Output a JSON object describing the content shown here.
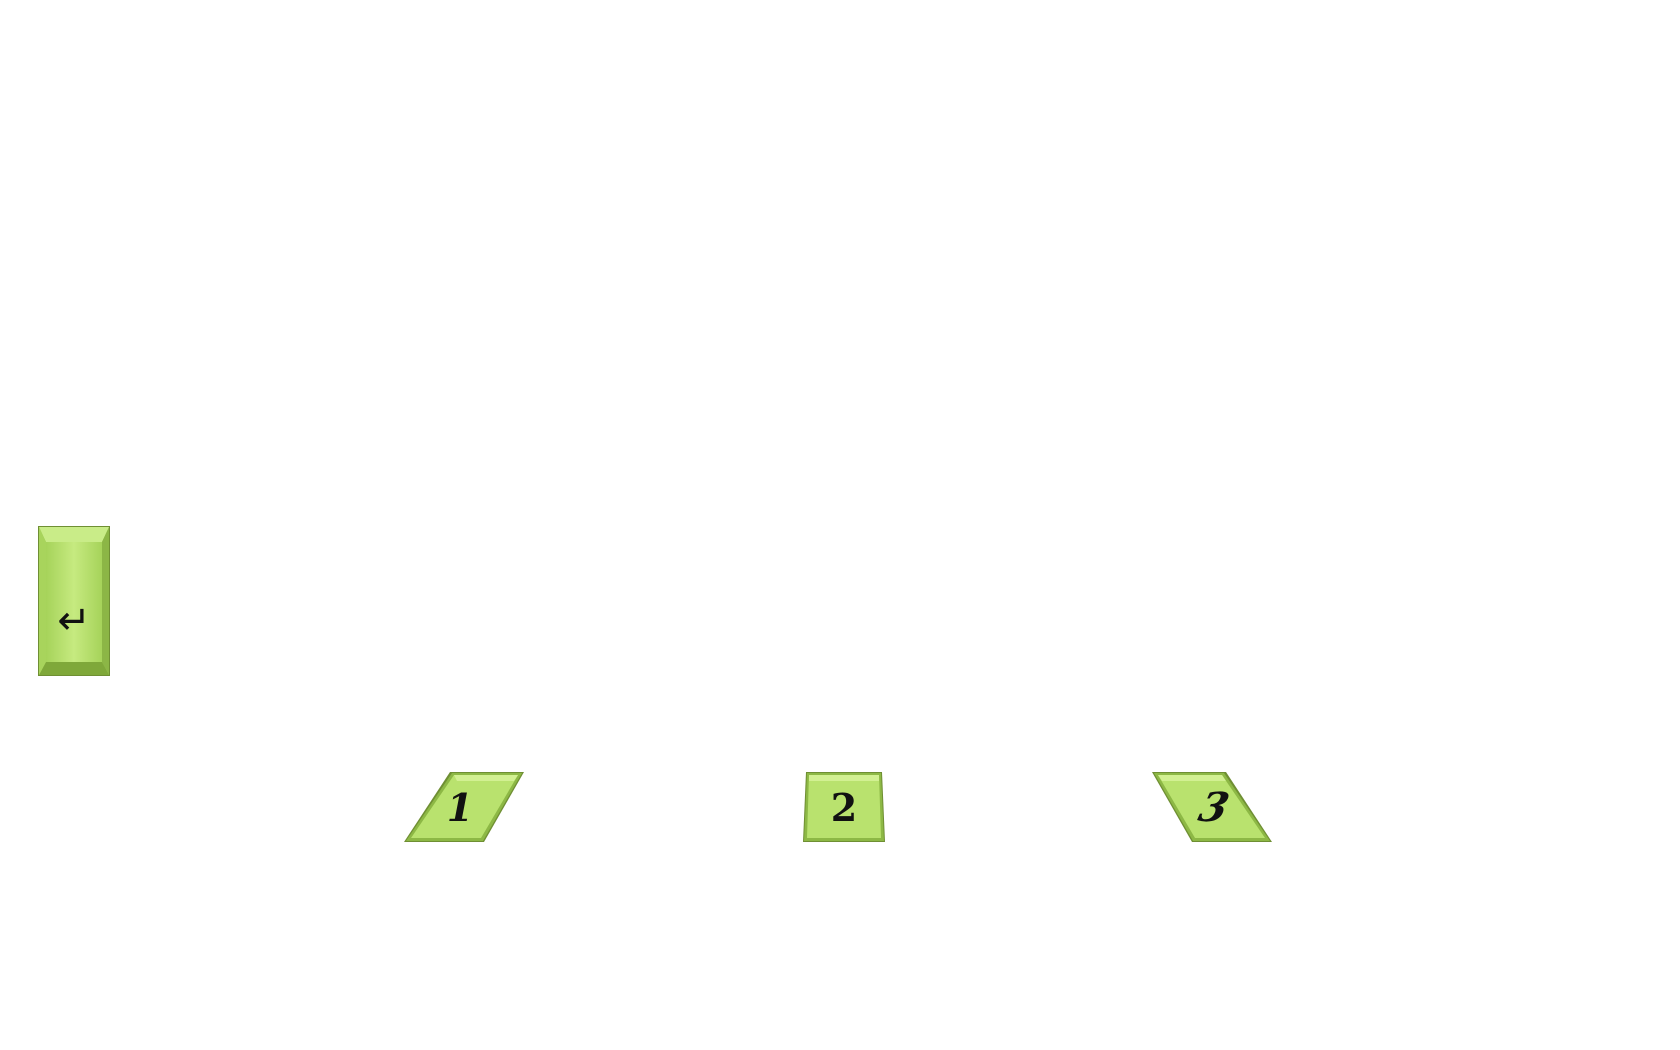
{
  "screen": {
    "background": "#ffffff"
  },
  "keys": {
    "enter": {
      "label": "↵",
      "icon": "enter-arrow-icon"
    },
    "option_1": {
      "label": "1"
    },
    "option_2": {
      "label": "2"
    },
    "option_3": {
      "label": "3"
    }
  },
  "colors": {
    "key_face": "#b5e06a",
    "key_face_light": "#c8ec82",
    "key_edge": "#7fa83a",
    "key_shadow": "#5d7a2a",
    "label": "#111111"
  }
}
